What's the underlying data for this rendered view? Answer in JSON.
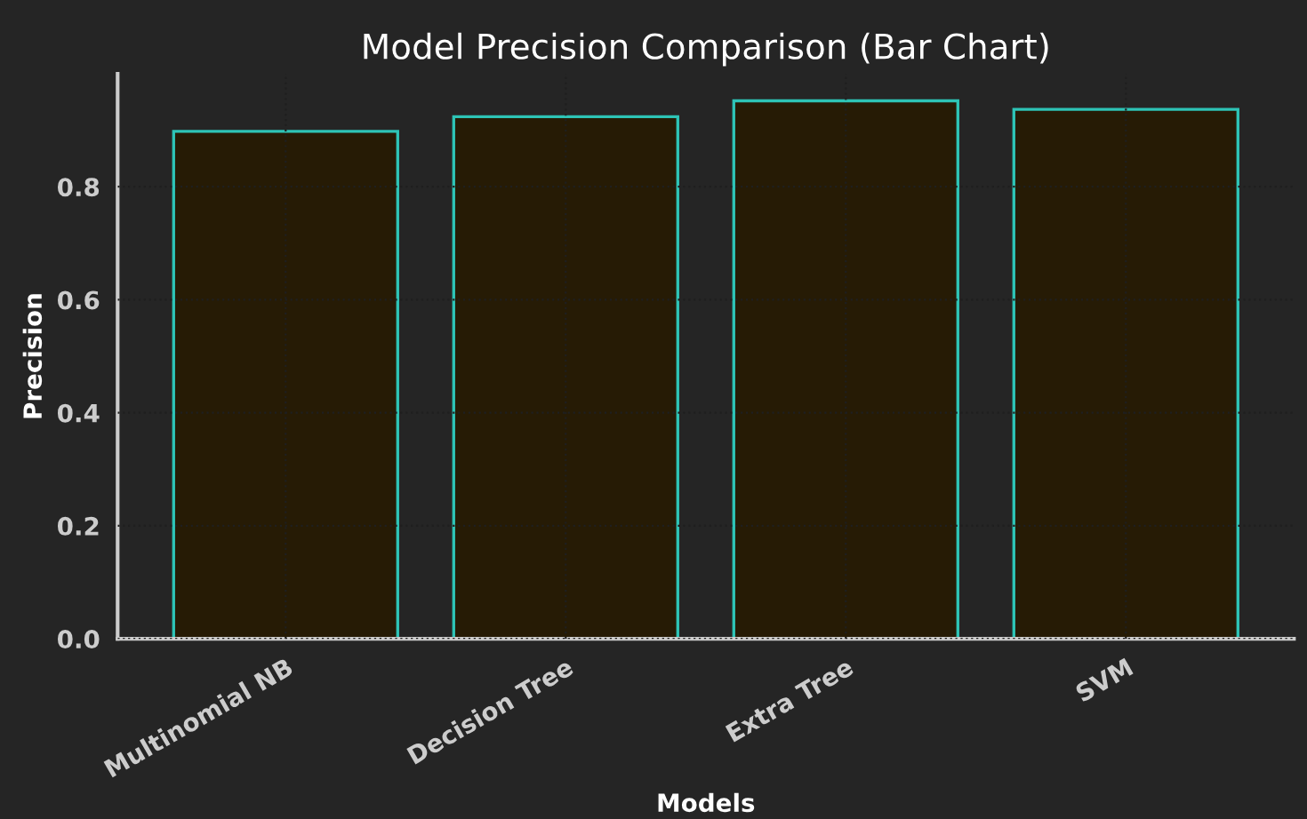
{
  "chart_data": {
    "type": "bar",
    "title": "Model Precision Comparison (Bar Chart)",
    "xlabel": "Models",
    "ylabel": "Precision",
    "categories": [
      "Multinomial NB",
      "Decision Tree",
      "Extra Tree",
      "SVM"
    ],
    "values": [
      0.898,
      0.924,
      0.952,
      0.937
    ],
    "color": "#261b05",
    "ylim": [
      0,
      1.0
    ],
    "yticks": [
      {
        "value": 0.0,
        "label": "0.0"
      },
      {
        "value": 0.2,
        "label": "0.2"
      },
      {
        "value": 0.4,
        "label": "0.4"
      },
      {
        "value": 0.6,
        "label": "0.6"
      },
      {
        "value": 0.8,
        "label": "0.8"
      }
    ],
    "grid": true
  }
}
